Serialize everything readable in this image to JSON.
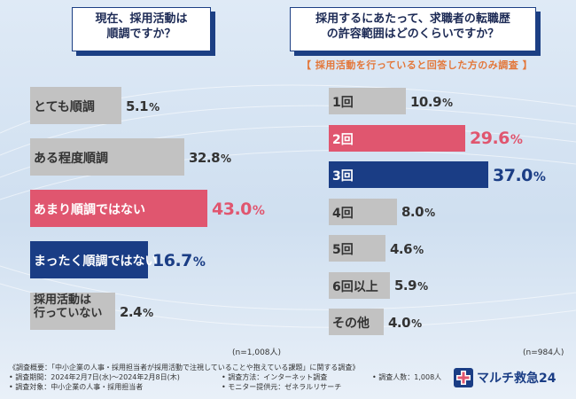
{
  "left": {
    "question_line1": "現在、採用活動は",
    "question_line2": "順調ですか？",
    "n_note": "(n=1,008人)"
  },
  "right": {
    "question_line1": "採用するにあたって、求職者の転職歴",
    "question_line2": "の許容範囲はどのくらいですか？",
    "subnote": "【 採用活動を行っていると回答した方のみ調査 】",
    "n_note": "(n=984人)"
  },
  "chart_data": [
    {
      "type": "bar",
      "orientation": "horizontal",
      "title": "現在、採用活動は順調ですか？",
      "categories": [
        "とても順調",
        "ある程度順調",
        "あまり順調ではない",
        "まったく順調ではない",
        "採用活動は行っていない"
      ],
      "values": [
        5.1,
        32.8,
        43.0,
        16.7,
        2.4
      ],
      "value_labels": [
        "5.1",
        "32.8",
        "43.0",
        "16.7",
        "2.4"
      ],
      "highlight": [
        "gray",
        "gray",
        "pink",
        "navy",
        "gray"
      ],
      "unit": "%",
      "n": "n=1,008人"
    },
    {
      "type": "bar",
      "orientation": "horizontal",
      "title": "採用するにあたって、求職者の転職歴の許容範囲はどのくらいですか？",
      "categories": [
        "1回",
        "2回",
        "3回",
        "4回",
        "5回",
        "6回以上",
        "その他"
      ],
      "values": [
        10.9,
        29.6,
        37.0,
        8.0,
        4.6,
        5.9,
        4.0
      ],
      "value_labels": [
        "10.9",
        "29.6",
        "37.0",
        "8.0",
        "4.6",
        "5.9",
        "4.0"
      ],
      "highlight": [
        "gray",
        "pink",
        "navy",
        "gray",
        "gray",
        "gray",
        "gray"
      ],
      "unit": "%",
      "n": "n=984人"
    }
  ],
  "colors": {
    "gray": "#c2c2c2",
    "pink": "#e0566f",
    "navy": "#1a3d85",
    "accent_orange": "#e3773a"
  },
  "footer": {
    "line1": "《調査概要：「中小企業の人事・採用担当者が採用活動で注視していることや抱えている課題」に関する調査》",
    "period": "• 調査期間：2024年2月7日(水)～2024年2月8日(木)",
    "method": "• 調査方法：インターネット調査",
    "count": "• 調査人数：1,008人",
    "target": "• 調査対象：中小企業の人事・採用担当者",
    "provider": "• モニター提供元：ゼネラルリサーチ"
  },
  "logo": {
    "icon": "cross-logo-icon",
    "text": "マルチ救急24"
  }
}
